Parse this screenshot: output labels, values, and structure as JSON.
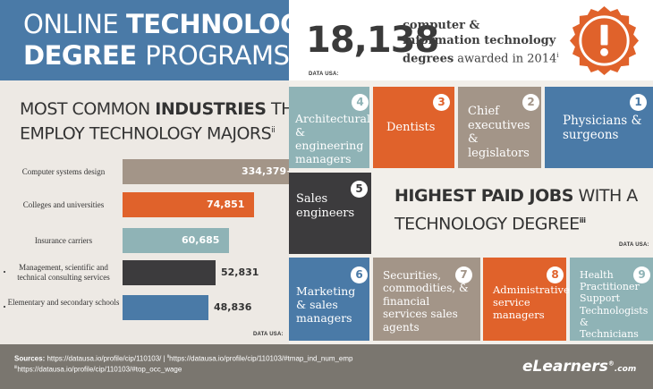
{
  "header": {
    "title_line1_thin": "ONLINE ",
    "title_line1_bold": "TECHNOLOGY",
    "title_line2_bold": "DEGREE ",
    "title_line2_thin": "PROGRAMS"
  },
  "stat": {
    "number": "18,138",
    "text_bold": "computer & information technology degrees",
    "text_rest": " awarded in 2014",
    "footnote": "i",
    "source": "DATA USA:"
  },
  "badge": {
    "icon": "exclamation-icon",
    "glyph": "!",
    "color": "#e0622b"
  },
  "industries": {
    "title_thin1": "MOST COMMON ",
    "title_bold": "INDUSTRIES",
    "title_thin2": " THAT",
    "title_line2": "EMPLOY TECHNOLOGY MAJORS",
    "footnote": "ii",
    "source": "DATA USA:",
    "items": [
      {
        "label": "Computer systems design",
        "value": "334,379+",
        "number": 334379,
        "color": "#a39588"
      },
      {
        "label": "Colleges and universities",
        "value": "74,851",
        "number": 74851,
        "color": "#e0622b"
      },
      {
        "label": "Insurance carriers",
        "value": "60,685",
        "number": 60685,
        "color": "#8fb3b6"
      },
      {
        "label": "Management, scientific and technical consulting services",
        "value": "52,831",
        "number": 52831,
        "color": "#3c3b3d"
      },
      {
        "label": "Elementary and secondary schools",
        "value": "48,836",
        "number": 48836,
        "color": "#4a7aa7"
      }
    ]
  },
  "jobs": {
    "title_bold1": "HIGHEST PAID ",
    "title_bold2": "JOBS",
    "title_thin": " WITH A",
    "title_line2": "TECHNOLOGY DEGREE",
    "footnote": "iii",
    "source": "DATA USA:",
    "tiles": [
      {
        "rank": "1",
        "label": "Physicians & surgeons",
        "color": "#4a7aa7"
      },
      {
        "rank": "2",
        "label": "Chief executives & legislators",
        "color": "#a39588"
      },
      {
        "rank": "3",
        "label": "Dentists",
        "color": "#e0622b"
      },
      {
        "rank": "4",
        "label": "Architectural & engineering managers",
        "color": "#8fb3b6"
      },
      {
        "rank": "5",
        "label": "Sales engineers",
        "color": "#3c3b3d"
      },
      {
        "rank": "6",
        "label": "Marketing & sales managers",
        "color": "#4a7aa7"
      },
      {
        "rank": "7",
        "label": "Securities, commodities, & financial services sales agents",
        "color": "#a39588"
      },
      {
        "rank": "8",
        "label": "Administrative service managers",
        "color": "#e0622b"
      },
      {
        "rank": "9",
        "label": "Health Practitioner Support Technologists & Technicians",
        "color": "#8fb3b6"
      }
    ]
  },
  "footer": {
    "sources_label": "Sources:",
    "src_i": " https://datausa.io/profile/cip/110103/",
    "sep": "  |  ",
    "src_ii_mark": "ii",
    "src_ii": "https://datausa.io/profile/cip/110103/#tmap_ind_num_emp",
    "src_iii_mark": "iii",
    "src_iii": "https://datausa.io/profile/cip/110103/#top_occ_wage",
    "logo_e": "e",
    "logo_rest": "Learners",
    "logo_reg": "®",
    "logo_com": ".com"
  }
}
